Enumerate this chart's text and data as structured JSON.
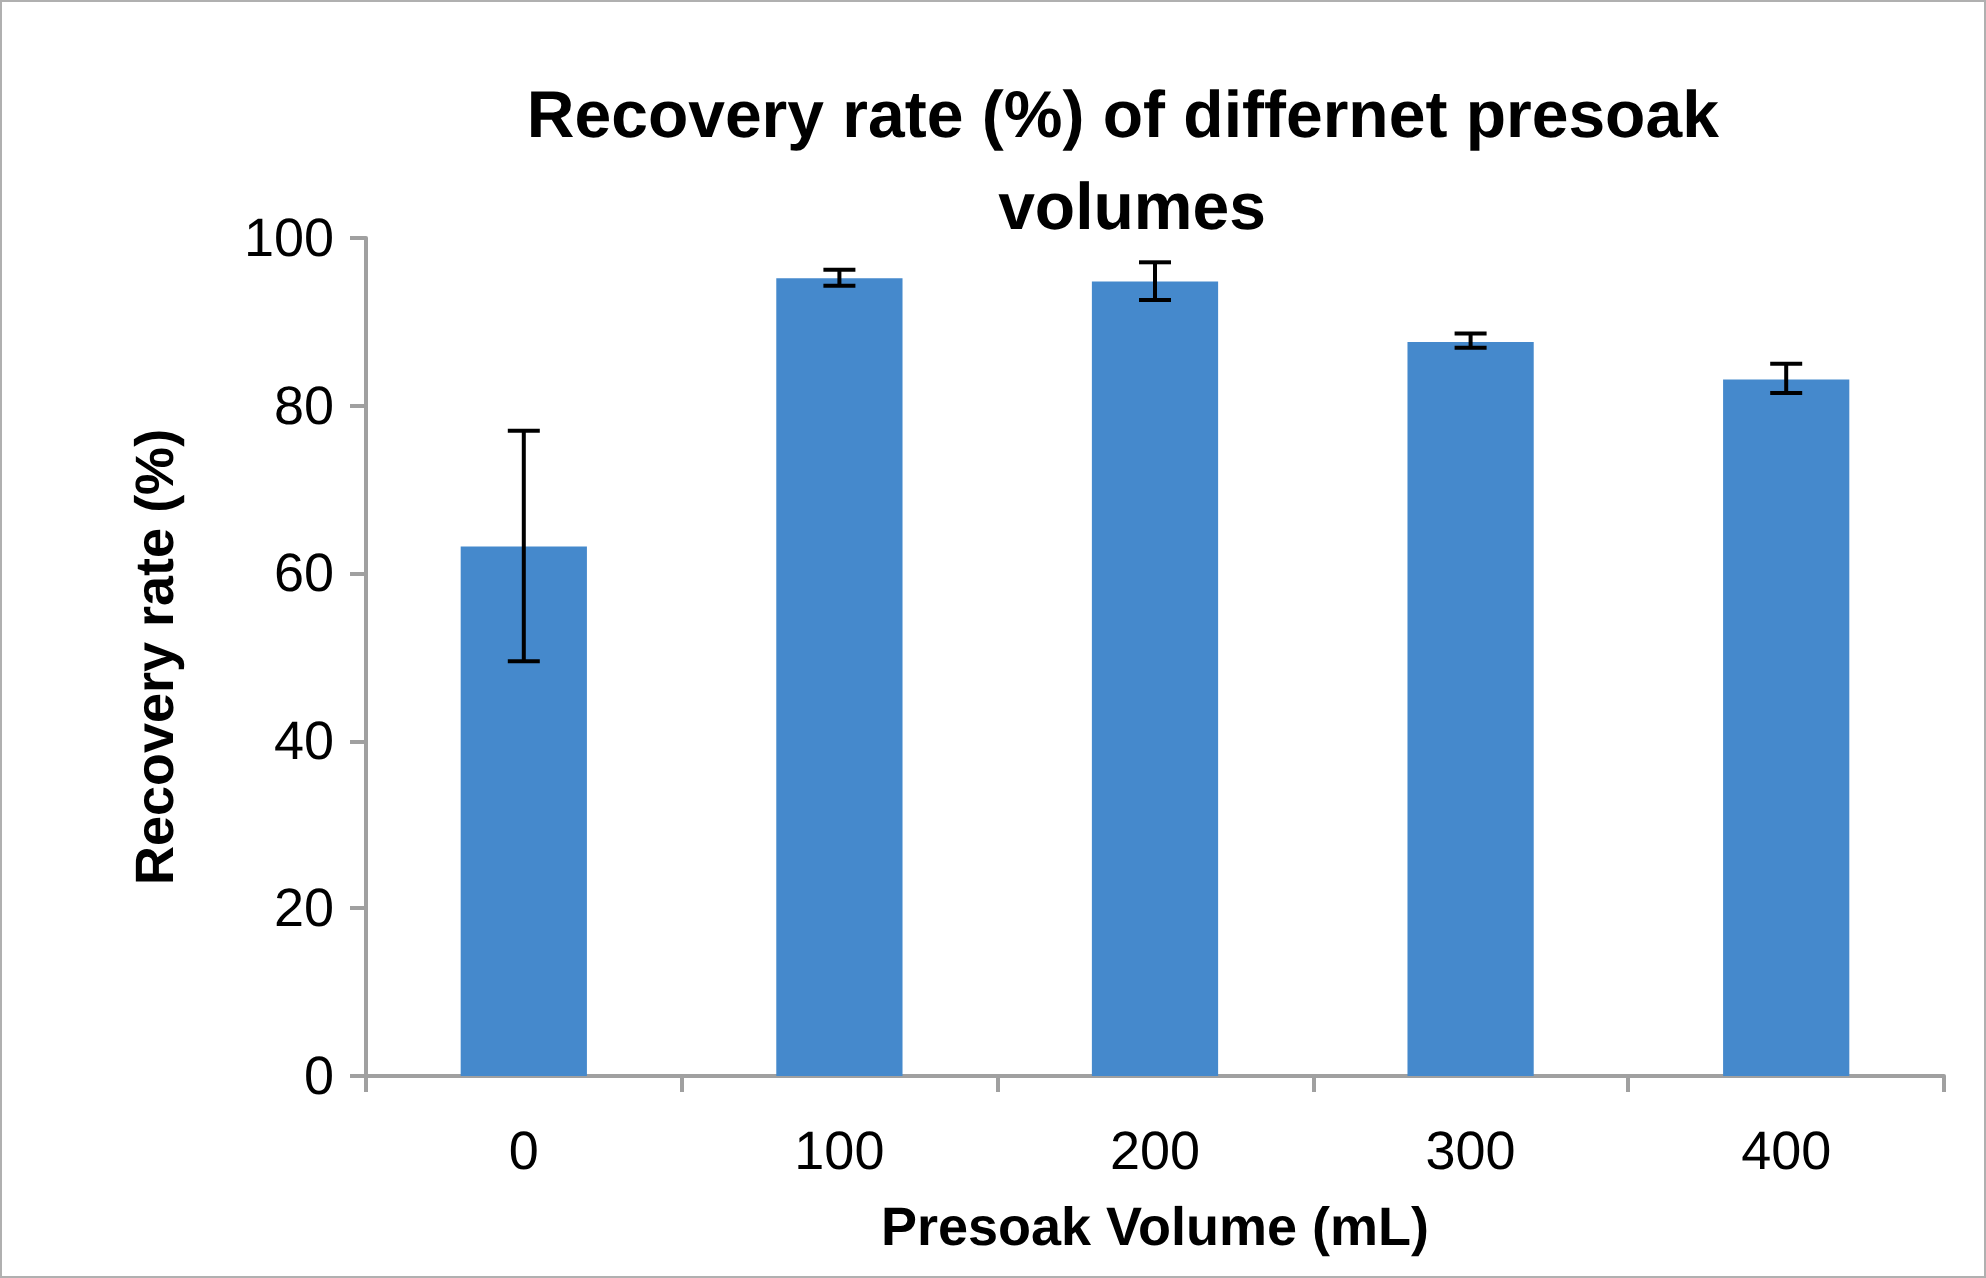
{
  "chart_data": {
    "type": "bar",
    "title": "Recovery rate (%) of differnet presoak volumes",
    "xlabel": "Presoak Volume (mL)",
    "ylabel": "Recovery rate (%)",
    "categories": [
      "0",
      "100",
      "200",
      "300",
      "400"
    ],
    "values": [
      63.2,
      95.2,
      94.8,
      87.6,
      83.1
    ],
    "errors": [
      [
        49.5,
        77
      ],
      [
        94.3,
        96.2
      ],
      [
        92.6,
        97.1
      ],
      [
        86.9,
        88.6
      ],
      [
        81.5,
        85
      ]
    ],
    "color": "#4589cc",
    "ylim": [
      0,
      100
    ],
    "yticks": [
      0,
      20,
      40,
      60,
      80,
      100
    ],
    "grid": false
  }
}
